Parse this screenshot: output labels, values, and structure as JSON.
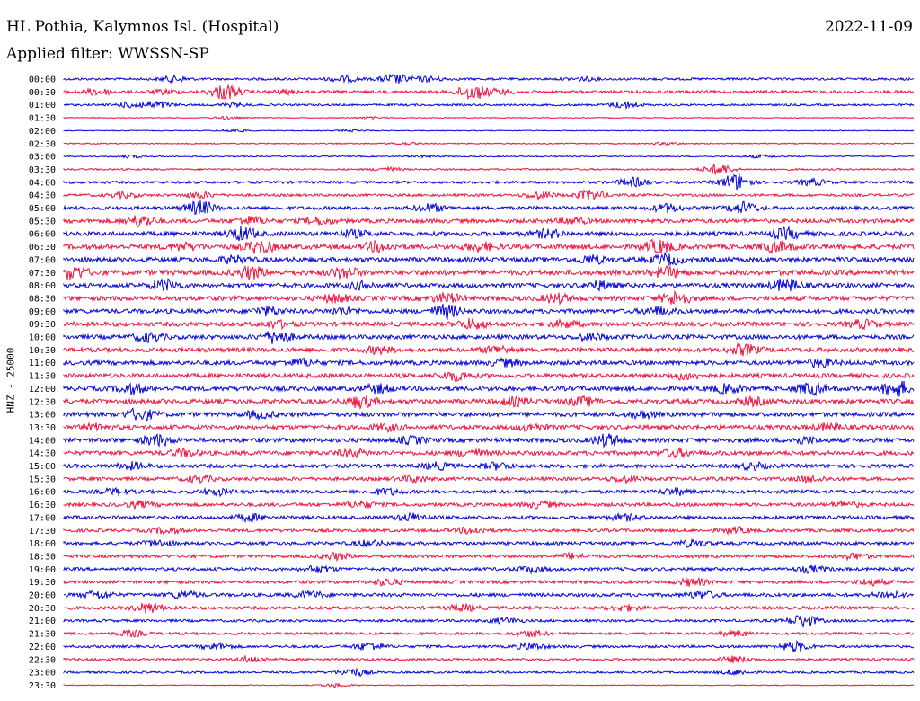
{
  "header": {
    "station": "HL Pothia, Kalymnos Isl. (Hospital)",
    "date": "2022-11-09",
    "filter": "Applied filter: WWSSN-SP"
  },
  "chart_data": {
    "type": "line",
    "title": "HL Pothia, Kalymnos Isl. (Hospital)",
    "ylabel": "HNZ - 25000",
    "colors": {
      "blue": "#0000dd",
      "red": "#f0103c"
    },
    "rows": [
      {
        "label": "00:00",
        "color": "#0000dd",
        "amp": 0.4,
        "events": [
          [
            0.13,
            0.9
          ],
          [
            0.33,
            0.9
          ],
          [
            0.39,
            1.5
          ],
          [
            0.43,
            0.8
          ],
          [
            0.61,
            0.5
          ]
        ]
      },
      {
        "label": "00:30",
        "color": "#f0103c",
        "amp": 0.5,
        "events": [
          [
            0.04,
            1.0
          ],
          [
            0.12,
            0.6
          ],
          [
            0.19,
            2.4
          ],
          [
            0.26,
            0.6
          ],
          [
            0.48,
            2.4
          ],
          [
            0.51,
            0.7
          ]
        ]
      },
      {
        "label": "01:00",
        "color": "#0000dd",
        "amp": 0.35,
        "events": [
          [
            0.08,
            0.9
          ],
          [
            0.11,
            1.0
          ],
          [
            0.2,
            0.5
          ],
          [
            0.66,
            1.0
          ]
        ]
      },
      {
        "label": "01:30",
        "color": "#f0103c",
        "amp": 0.15,
        "events": [
          [
            0.19,
            0.4
          ],
          [
            0.36,
            0.3
          ]
        ]
      },
      {
        "label": "02:00",
        "color": "#0000dd",
        "amp": 0.15,
        "events": [
          [
            0.2,
            0.5
          ],
          [
            0.34,
            0.3
          ]
        ]
      },
      {
        "label": "02:30",
        "color": "#f0103c",
        "amp": 0.2,
        "events": [
          [
            0.4,
            0.3
          ],
          [
            0.71,
            0.4
          ]
        ]
      },
      {
        "label": "03:00",
        "color": "#0000dd",
        "amp": 0.2,
        "events": [
          [
            0.08,
            0.4
          ],
          [
            0.42,
            0.3
          ],
          [
            0.82,
            0.5
          ]
        ]
      },
      {
        "label": "03:30",
        "color": "#f0103c",
        "amp": 0.3,
        "events": [
          [
            0.38,
            0.6
          ],
          [
            0.77,
            1.8
          ]
        ]
      },
      {
        "label": "04:00",
        "color": "#0000dd",
        "amp": 0.45,
        "events": [
          [
            0.67,
            1.4
          ],
          [
            0.79,
            2.6
          ],
          [
            0.88,
            1.0
          ]
        ]
      },
      {
        "label": "04:30",
        "color": "#f0103c",
        "amp": 0.45,
        "events": [
          [
            0.07,
            0.8
          ],
          [
            0.16,
            1.0
          ],
          [
            0.56,
            1.2
          ],
          [
            0.62,
            1.6
          ]
        ]
      },
      {
        "label": "05:00",
        "color": "#0000dd",
        "amp": 0.6,
        "events": [
          [
            0.16,
            2.2
          ],
          [
            0.43,
            1.2
          ],
          [
            0.71,
            1.2
          ],
          [
            0.8,
            1.8
          ]
        ]
      },
      {
        "label": "05:30",
        "color": "#f0103c",
        "amp": 0.7,
        "events": [
          [
            0.09,
            1.8
          ],
          [
            0.22,
            1.2
          ],
          [
            0.3,
            1.0
          ],
          [
            0.6,
            0.9
          ]
        ]
      },
      {
        "label": "06:00",
        "color": "#0000dd",
        "amp": 0.75,
        "events": [
          [
            0.21,
            2.0
          ],
          [
            0.34,
            1.0
          ],
          [
            0.57,
            1.2
          ],
          [
            0.85,
            1.6
          ]
        ]
      },
      {
        "label": "06:30",
        "color": "#f0103c",
        "amp": 0.85,
        "events": [
          [
            0.14,
            1.0
          ],
          [
            0.23,
            2.0
          ],
          [
            0.37,
            1.4
          ],
          [
            0.49,
            1.2
          ],
          [
            0.7,
            2.0
          ],
          [
            0.84,
            1.6
          ]
        ]
      },
      {
        "label": "07:00",
        "color": "#0000dd",
        "amp": 0.8,
        "events": [
          [
            0.2,
            1.0
          ],
          [
            0.62,
            1.2
          ],
          [
            0.71,
            1.6
          ]
        ]
      },
      {
        "label": "07:30",
        "color": "#f0103c",
        "amp": 0.9,
        "events": [
          [
            0.01,
            2.0
          ],
          [
            0.22,
            1.8
          ],
          [
            0.33,
            1.6
          ],
          [
            0.71,
            1.4
          ]
        ]
      },
      {
        "label": "08:00",
        "color": "#0000dd",
        "amp": 0.75,
        "events": [
          [
            0.12,
            1.8
          ],
          [
            0.35,
            1.0
          ],
          [
            0.63,
            1.2
          ],
          [
            0.85,
            2.0
          ]
        ]
      },
      {
        "label": "08:30",
        "color": "#f0103c",
        "amp": 0.8,
        "events": [
          [
            0.32,
            1.2
          ],
          [
            0.45,
            1.4
          ],
          [
            0.58,
            1.3
          ],
          [
            0.72,
            2.0
          ]
        ]
      },
      {
        "label": "09:00",
        "color": "#0000dd",
        "amp": 0.75,
        "events": [
          [
            0.24,
            1.2
          ],
          [
            0.33,
            1.0
          ],
          [
            0.45,
            2.0
          ],
          [
            0.7,
            1.2
          ]
        ]
      },
      {
        "label": "09:30",
        "color": "#f0103c",
        "amp": 0.75,
        "events": [
          [
            0.25,
            1.0
          ],
          [
            0.48,
            1.6
          ],
          [
            0.59,
            1.0
          ],
          [
            0.94,
            1.2
          ]
        ]
      },
      {
        "label": "10:00",
        "color": "#0000dd",
        "amp": 0.75,
        "events": [
          [
            0.1,
            1.3
          ],
          [
            0.25,
            2.0
          ],
          [
            0.62,
            1.0
          ]
        ]
      },
      {
        "label": "10:30",
        "color": "#f0103c",
        "amp": 0.75,
        "events": [
          [
            0.37,
            1.0
          ],
          [
            0.51,
            1.1
          ],
          [
            0.8,
            1.6
          ]
        ]
      },
      {
        "label": "11:00",
        "color": "#0000dd",
        "amp": 0.75,
        "events": [
          [
            0.28,
            1.0
          ],
          [
            0.52,
            1.0
          ],
          [
            0.89,
            1.2
          ]
        ]
      },
      {
        "label": "11:30",
        "color": "#f0103c",
        "amp": 0.75,
        "events": [
          [
            0.46,
            1.4
          ],
          [
            0.73,
            1.0
          ]
        ]
      },
      {
        "label": "12:00",
        "color": "#0000dd",
        "amp": 0.8,
        "events": [
          [
            0.08,
            1.4
          ],
          [
            0.37,
            1.2
          ],
          [
            0.78,
            1.2
          ],
          [
            0.88,
            1.6
          ],
          [
            0.98,
            2.4
          ]
        ]
      },
      {
        "label": "12:30",
        "color": "#f0103c",
        "amp": 0.8,
        "events": [
          [
            0.35,
            1.8
          ],
          [
            0.53,
            1.1
          ],
          [
            0.61,
            1.2
          ],
          [
            0.81,
            1.0
          ]
        ]
      },
      {
        "label": "13:00",
        "color": "#0000dd",
        "amp": 0.75,
        "events": [
          [
            0.09,
            1.8
          ],
          [
            0.23,
            1.0
          ],
          [
            0.68,
            1.0
          ]
        ]
      },
      {
        "label": "13:30",
        "color": "#f0103c",
        "amp": 0.75,
        "events": [
          [
            0.04,
            0.9
          ],
          [
            0.38,
            1.0
          ],
          [
            0.55,
            1.0
          ],
          [
            0.9,
            1.0
          ]
        ]
      },
      {
        "label": "14:00",
        "color": "#0000dd",
        "amp": 0.75,
        "events": [
          [
            0.11,
            1.6
          ],
          [
            0.41,
            1.0
          ],
          [
            0.64,
            1.8
          ],
          [
            0.87,
            1.0
          ]
        ]
      },
      {
        "label": "14:30",
        "color": "#f0103c",
        "amp": 0.75,
        "events": [
          [
            0.14,
            1.0
          ],
          [
            0.34,
            1.0
          ],
          [
            0.48,
            1.0
          ],
          [
            0.72,
            1.1
          ]
        ]
      },
      {
        "label": "15:00",
        "color": "#0000dd",
        "amp": 0.65,
        "events": [
          [
            0.08,
            1.0
          ],
          [
            0.44,
            1.0
          ],
          [
            0.51,
            1.0
          ],
          [
            0.81,
            1.0
          ]
        ]
      },
      {
        "label": "15:30",
        "color": "#f0103c",
        "amp": 0.6,
        "events": [
          [
            0.16,
            0.9
          ],
          [
            0.41,
            0.9
          ],
          [
            0.66,
            1.0
          ],
          [
            0.88,
            0.9
          ]
        ]
      },
      {
        "label": "16:00",
        "color": "#0000dd",
        "amp": 0.6,
        "events": [
          [
            0.06,
            0.8
          ],
          [
            0.18,
            1.0
          ],
          [
            0.38,
            0.9
          ],
          [
            0.72,
            1.0
          ]
        ]
      },
      {
        "label": "16:30",
        "color": "#f0103c",
        "amp": 0.6,
        "events": [
          [
            0.09,
            0.9
          ],
          [
            0.35,
            1.0
          ],
          [
            0.56,
            0.9
          ],
          [
            0.92,
            0.9
          ]
        ]
      },
      {
        "label": "17:00",
        "color": "#0000dd",
        "amp": 0.6,
        "events": [
          [
            0.22,
            1.0
          ],
          [
            0.41,
            1.2
          ],
          [
            0.66,
            0.9
          ]
        ]
      },
      {
        "label": "17:30",
        "color": "#f0103c",
        "amp": 0.55,
        "events": [
          [
            0.12,
            0.9
          ],
          [
            0.48,
            1.0
          ],
          [
            0.79,
            0.9
          ]
        ]
      },
      {
        "label": "18:00",
        "color": "#0000dd",
        "amp": 0.55,
        "events": [
          [
            0.11,
            1.0
          ],
          [
            0.36,
            0.9
          ],
          [
            0.74,
            1.0
          ]
        ]
      },
      {
        "label": "18:30",
        "color": "#f0103c",
        "amp": 0.55,
        "events": [
          [
            0.32,
            1.0
          ],
          [
            0.6,
            0.9
          ],
          [
            0.93,
            0.9
          ]
        ]
      },
      {
        "label": "19:00",
        "color": "#0000dd",
        "amp": 0.55,
        "events": [
          [
            0.3,
            1.0
          ],
          [
            0.55,
            0.9
          ],
          [
            0.88,
            1.0
          ]
        ]
      },
      {
        "label": "19:30",
        "color": "#f0103c",
        "amp": 0.55,
        "events": [
          [
            0.38,
            1.0
          ],
          [
            0.74,
            1.2
          ],
          [
            0.95,
            0.9
          ]
        ]
      },
      {
        "label": "20:00",
        "color": "#0000dd",
        "amp": 0.6,
        "events": [
          [
            0.04,
            1.2
          ],
          [
            0.14,
            1.1
          ],
          [
            0.29,
            1.0
          ],
          [
            0.75,
            1.1
          ],
          [
            0.97,
            1.0
          ]
        ]
      },
      {
        "label": "20:30",
        "color": "#f0103c",
        "amp": 0.55,
        "events": [
          [
            0.1,
            1.6
          ],
          [
            0.47,
            1.0
          ],
          [
            0.66,
            0.9
          ]
        ]
      },
      {
        "label": "21:00",
        "color": "#0000dd",
        "amp": 0.45,
        "events": [
          [
            0.52,
            0.9
          ],
          [
            0.87,
            2.0
          ]
        ]
      },
      {
        "label": "21:30",
        "color": "#f0103c",
        "amp": 0.45,
        "events": [
          [
            0.08,
            0.9
          ],
          [
            0.55,
            1.0
          ],
          [
            0.79,
            0.9
          ]
        ]
      },
      {
        "label": "22:00",
        "color": "#0000dd",
        "amp": 0.45,
        "events": [
          [
            0.18,
            1.0
          ],
          [
            0.36,
            1.2
          ],
          [
            0.55,
            1.0
          ],
          [
            0.86,
            1.6
          ]
        ]
      },
      {
        "label": "22:30",
        "color": "#f0103c",
        "amp": 0.4,
        "events": [
          [
            0.22,
            1.0
          ],
          [
            0.79,
            1.0
          ]
        ]
      },
      {
        "label": "23:00",
        "color": "#0000dd",
        "amp": 0.35,
        "events": [
          [
            0.34,
            1.3
          ],
          [
            0.79,
            0.8
          ]
        ]
      },
      {
        "label": "23:30",
        "color": "#f0103c",
        "amp": 0.15,
        "events": [
          [
            0.32,
            0.6
          ]
        ]
      }
    ]
  }
}
